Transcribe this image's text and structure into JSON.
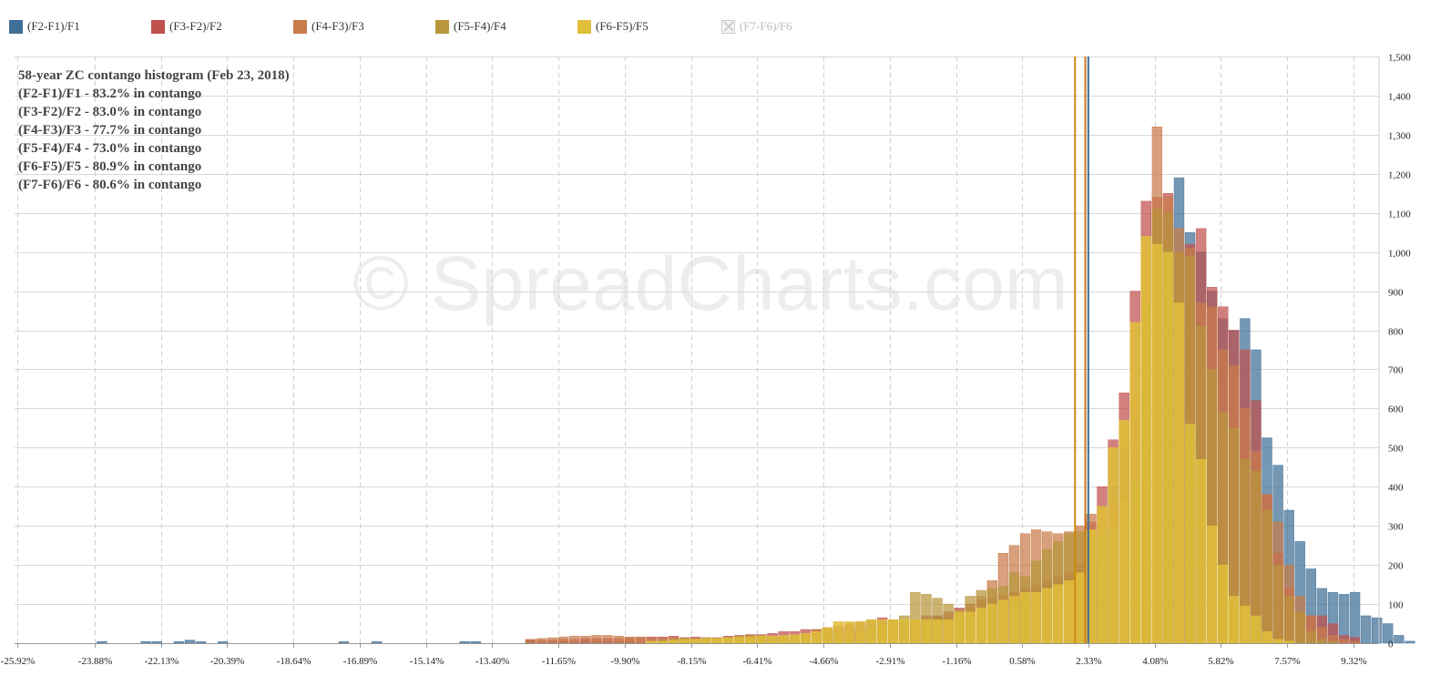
{
  "legend": [
    {
      "label": "(F2-F1)/F1",
      "color": "#3f6f97",
      "enabled": true
    },
    {
      "label": "(F3-F2)/F2",
      "color": "#c0504d",
      "enabled": true
    },
    {
      "label": "(F4-F3)/F3",
      "color": "#c97b4a",
      "enabled": true
    },
    {
      "label": "(F5-F4)/F4",
      "color": "#b8963c",
      "enabled": true
    },
    {
      "label": "(F6-F5)/F5",
      "color": "#e0bf3a",
      "enabled": true
    },
    {
      "label": "(F7-F6)/F6",
      "color": "#cccccc",
      "enabled": false
    }
  ],
  "watermark": "© SpreadCharts.com",
  "chart_data": {
    "type": "bar",
    "title": "58-year ZC contango histogram (Feb 23, 2018)",
    "annotations": [
      "(F2-F1)/F1 - 83.2% in contango",
      "(F3-F2)/F2 - 83.0% in contango",
      "(F4-F3)/F3 - 77.7% in contango",
      "(F5-F4)/F4 - 73.0% in contango",
      "(F6-F5)/F5 - 80.9% in contango",
      "(F7-F6)/F6 - 80.6% in contango"
    ],
    "xlim": [
      -26.0,
      10.0
    ],
    "ylim": [
      0,
      1500
    ],
    "x_ticks": [
      -25.92,
      -23.88,
      -22.13,
      -20.39,
      -18.64,
      -16.89,
      -15.14,
      -13.4,
      -11.65,
      -9.9,
      -8.15,
      -6.41,
      -4.66,
      -2.91,
      -1.16,
      0.58,
      2.33,
      4.08,
      5.82,
      7.57,
      9.32
    ],
    "x_tick_labels": [
      "-25.92%",
      "-23.88%",
      "-22.13%",
      "-20.39%",
      "-18.64%",
      "-16.89%",
      "-15.14%",
      "-13.40%",
      "-11.65%",
      "-9.90%",
      "-8.15%",
      "-6.41%",
      "-4.66%",
      "-2.91%",
      "-1.16%",
      "0.58%",
      "2.33%",
      "4.08%",
      "5.82%",
      "7.57%",
      "9.32%"
    ],
    "y_ticks": [
      0,
      100,
      200,
      300,
      400,
      500,
      600,
      700,
      800,
      900,
      1000,
      1100,
      1200,
      1300,
      1400,
      1500
    ],
    "y_tick_labels": [
      "0",
      "100",
      "200",
      "300",
      "400",
      "500",
      "600",
      "700",
      "800",
      "900",
      "1,000",
      "1,100",
      "1,200",
      "1,300",
      "1,400",
      "1,500"
    ],
    "grid": true,
    "legend_position": "top",
    "bin_width": 0.29,
    "x_start": -23.84,
    "marker_lines": [
      {
        "series": "(F2-F1)/F1",
        "x": 2.33,
        "color": "#3f6f97"
      },
      {
        "series": "(F3-F2)/F2",
        "x": 2.25,
        "color": "#c0504d"
      },
      {
        "series": "(F4-F3)/F3",
        "x": 2.25,
        "color": "#cc7a1e"
      },
      {
        "series": "(F5-F4)/F4",
        "x": 1.98,
        "color": "#cc8a10"
      }
    ],
    "series": [
      {
        "name": "(F2-F1)/F1",
        "color": "#3f6f97",
        "values": [
          4,
          0,
          0,
          0,
          4,
          4,
          0,
          4,
          8,
          4,
          0,
          4,
          0,
          0,
          0,
          0,
          0,
          0,
          0,
          0,
          0,
          0,
          4,
          0,
          0,
          4,
          0,
          0,
          0,
          0,
          0,
          0,
          0,
          4,
          4,
          0,
          0,
          0,
          0,
          8,
          0,
          4,
          4,
          4,
          8,
          4,
          4,
          4,
          4,
          0,
          4,
          4,
          8,
          0,
          4,
          4,
          4,
          4,
          4,
          8,
          12,
          15,
          15,
          18,
          20,
          25,
          30,
          35,
          40,
          45,
          50,
          55,
          60,
          55,
          50,
          60,
          70,
          65,
          75,
          80,
          90,
          100,
          110,
          120,
          130,
          140,
          150,
          160,
          170,
          180,
          200,
          300,
          400,
          500,
          600,
          800,
          1000,
          1100,
          1190,
          1050,
          1000,
          900,
          830,
          800,
          830,
          750,
          525,
          455,
          340,
          260,
          190,
          140,
          130,
          125,
          130,
          70,
          65,
          50,
          20,
          5
        ]
      },
      {
        "name": "(F3-F2)/F2",
        "color": "#c0504d",
        "values": [
          0,
          0,
          0,
          0,
          0,
          0,
          0,
          0,
          0,
          0,
          0,
          0,
          0,
          0,
          0,
          0,
          0,
          0,
          0,
          0,
          0,
          0,
          0,
          0,
          0,
          0,
          0,
          0,
          0,
          0,
          0,
          0,
          0,
          0,
          0,
          0,
          0,
          0,
          0,
          8,
          8,
          8,
          10,
          10,
          12,
          12,
          12,
          12,
          14,
          14,
          16,
          16,
          18,
          14,
          16,
          14,
          14,
          18,
          20,
          22,
          22,
          25,
          30,
          30,
          35,
          35,
          40,
          45,
          50,
          55,
          60,
          65,
          60,
          55,
          60,
          70,
          70,
          80,
          90,
          100,
          110,
          115,
          120,
          130,
          140,
          150,
          160,
          170,
          180,
          200,
          310,
          400,
          520,
          640,
          900,
          1130,
          1140,
          1150,
          1000,
          1020,
          1060,
          910,
          860,
          800,
          750,
          620,
          380,
          230,
          140,
          75,
          70,
          70,
          50,
          20,
          15,
          0,
          0,
          0,
          0,
          0
        ]
      },
      {
        "name": "(F4-F3)/F3",
        "color": "#c97b4a",
        "values": [
          0,
          0,
          0,
          0,
          0,
          0,
          0,
          0,
          0,
          0,
          0,
          0,
          0,
          0,
          0,
          0,
          0,
          0,
          0,
          0,
          0,
          0,
          0,
          0,
          0,
          0,
          0,
          0,
          0,
          0,
          0,
          0,
          0,
          0,
          0,
          0,
          0,
          0,
          0,
          10,
          12,
          14,
          16,
          18,
          18,
          20,
          20,
          18,
          16,
          16,
          14,
          14,
          14,
          14,
          12,
          12,
          12,
          12,
          15,
          15,
          15,
          15,
          15,
          17,
          19,
          35,
          38,
          38,
          35,
          30,
          35,
          40,
          45,
          50,
          55,
          60,
          65,
          70,
          75,
          90,
          120,
          160,
          230,
          250,
          280,
          290,
          285,
          280,
          285,
          300,
          330,
          340,
          350,
          560,
          640,
          1000,
          1320,
          1140,
          1060,
          1010,
          870,
          860,
          750,
          710,
          600,
          490,
          380,
          310,
          200,
          120,
          70,
          40,
          20,
          10,
          5,
          0,
          0,
          0,
          0,
          0
        ]
      },
      {
        "name": "(F5-F4)/F4",
        "color": "#b8963c",
        "values": [
          0,
          0,
          0,
          0,
          0,
          0,
          0,
          0,
          0,
          0,
          0,
          0,
          0,
          0,
          0,
          0,
          0,
          0,
          0,
          0,
          0,
          0,
          0,
          0,
          0,
          0,
          0,
          0,
          0,
          0,
          0,
          0,
          0,
          0,
          0,
          0,
          0,
          0,
          0,
          0,
          0,
          0,
          0,
          0,
          0,
          0,
          0,
          0,
          0,
          0,
          5,
          8,
          10,
          12,
          12,
          14,
          14,
          15,
          18,
          20,
          20,
          18,
          16,
          16,
          15,
          16,
          18,
          20,
          22,
          30,
          40,
          50,
          60,
          70,
          130,
          125,
          115,
          100,
          85,
          120,
          135,
          140,
          145,
          180,
          170,
          210,
          240,
          260,
          280,
          285,
          280,
          290,
          290,
          365,
          410,
          860,
          1110,
          1100,
          1000,
          990,
          810,
          700,
          590,
          550,
          470,
          440,
          340,
          200,
          120,
          80,
          30,
          10,
          5,
          0,
          0,
          0,
          0,
          0,
          0,
          0
        ]
      },
      {
        "name": "(F6-F5)/F5",
        "color": "#e0bf3a",
        "values": [
          0,
          0,
          0,
          0,
          0,
          0,
          0,
          0,
          0,
          0,
          0,
          0,
          0,
          0,
          0,
          0,
          0,
          0,
          0,
          0,
          0,
          0,
          0,
          0,
          0,
          0,
          0,
          0,
          0,
          0,
          0,
          0,
          0,
          0,
          0,
          0,
          0,
          0,
          0,
          0,
          0,
          0,
          0,
          0,
          0,
          0,
          0,
          0,
          0,
          0,
          5,
          5,
          8,
          10,
          10,
          12,
          12,
          14,
          16,
          16,
          18,
          18,
          20,
          22,
          25,
          30,
          40,
          55,
          55,
          55,
          60,
          60,
          60,
          60,
          60,
          60,
          60,
          60,
          80,
          80,
          90,
          100,
          110,
          120,
          130,
          130,
          140,
          150,
          160,
          180,
          290,
          350,
          500,
          570,
          820,
          1040,
          1020,
          1000,
          870,
          560,
          470,
          300,
          200,
          120,
          95,
          70,
          30,
          10,
          5,
          0,
          0,
          0,
          0,
          0,
          0,
          0,
          0,
          0,
          0,
          0
        ]
      }
    ]
  }
}
